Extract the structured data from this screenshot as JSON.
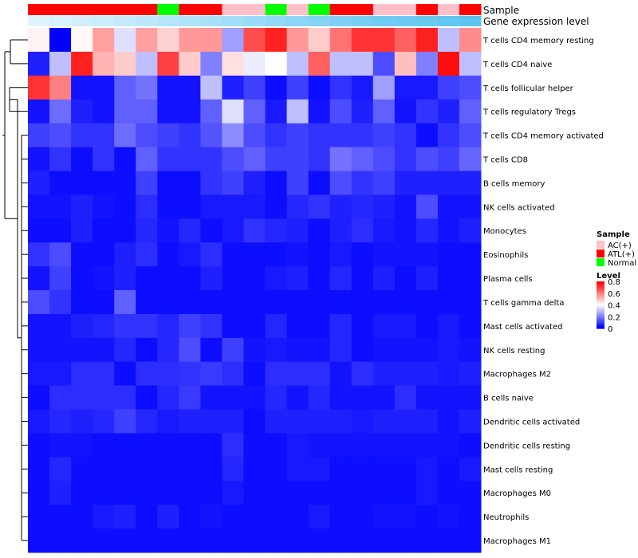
{
  "chart_data": {
    "type": "heatmap",
    "annotation_rows": [
      {
        "name": "Sample",
        "values": [
          "ATL(+)",
          "ATL(+)",
          "ATL(+)",
          "ATL(+)",
          "ATL(+)",
          "ATL(+)",
          "Normal",
          "ATL(+)",
          "ATL(+)",
          "AC(+)",
          "AC(+)",
          "Normal",
          "AC(+)",
          "Normal",
          "ATL(+)",
          "ATL(+)",
          "AC(+)",
          "AC(+)",
          "ATL(+)",
          "AC(+)",
          "ATL(+)"
        ]
      },
      {
        "name": "Gene expression level",
        "values": [
          0.05,
          0.1,
          0.15,
          0.2,
          0.25,
          0.3,
          0.35,
          0.4,
          0.45,
          0.5,
          0.55,
          0.6,
          0.65,
          0.7,
          0.75,
          0.8,
          0.85,
          0.88,
          0.91,
          0.95,
          1.0
        ]
      }
    ],
    "rows": [
      "T cells CD4 memory resting",
      "T cells CD4 naive",
      "T cells follicular helper",
      "T cells regulatory  Tregs",
      "T cells CD4 memory activated",
      "T cells CD8",
      "B cells memory",
      "NK cells activated",
      "Monocytes",
      "Eosinophils",
      "Plasma cells",
      "T cells gamma delta",
      "Mast cells activated",
      "NK cells resting",
      "Macrophages M2",
      "B cells naive",
      "Dendritic cells activated",
      "Dendritic cells resting",
      "Mast cells resting",
      "Macrophages M0",
      "Neutrophils",
      "Macrophages M1"
    ],
    "values": [
      [
        0.42,
        0.0,
        0.41,
        0.55,
        0.35,
        0.55,
        0.47,
        0.56,
        0.56,
        0.25,
        0.68,
        0.75,
        0.56,
        0.48,
        0.62,
        0.72,
        0.72,
        0.65,
        0.75,
        0.3,
        0.58
      ],
      [
        0.05,
        0.3,
        0.75,
        0.52,
        0.48,
        0.3,
        0.7,
        0.48,
        0.2,
        0.45,
        0.37,
        0.4,
        0.3,
        0.65,
        0.3,
        0.3,
        0.12,
        0.5,
        0.2,
        0.78,
        0.3
      ],
      [
        0.72,
        0.6,
        0.03,
        0.03,
        0.15,
        0.18,
        0.03,
        0.03,
        0.3,
        0.05,
        0.1,
        0.02,
        0.1,
        0.02,
        0.08,
        0.04,
        0.25,
        0.04,
        0.04,
        0.1,
        0.12
      ],
      [
        0.03,
        0.17,
        0.05,
        0.03,
        0.15,
        0.15,
        0.03,
        0.03,
        0.15,
        0.35,
        0.15,
        0.04,
        0.3,
        0.03,
        0.12,
        0.05,
        0.15,
        0.03,
        0.08,
        0.05,
        0.15
      ],
      [
        0.1,
        0.12,
        0.08,
        0.08,
        0.17,
        0.12,
        0.1,
        0.08,
        0.13,
        0.22,
        0.12,
        0.08,
        0.1,
        0.08,
        0.08,
        0.08,
        0.1,
        0.08,
        0.02,
        0.08,
        0.12
      ],
      [
        0.03,
        0.08,
        0.02,
        0.08,
        0.02,
        0.15,
        0.08,
        0.08,
        0.08,
        0.12,
        0.15,
        0.1,
        0.1,
        0.08,
        0.18,
        0.15,
        0.12,
        0.08,
        0.12,
        0.1,
        0.16
      ],
      [
        0.05,
        0.02,
        0.02,
        0.02,
        0.02,
        0.1,
        0.02,
        0.02,
        0.08,
        0.1,
        0.05,
        0.02,
        0.1,
        0.02,
        0.12,
        0.08,
        0.1,
        0.05,
        0.05,
        0.05,
        0.05
      ],
      [
        0.03,
        0.03,
        0.05,
        0.03,
        0.02,
        0.07,
        0.02,
        0.02,
        0.04,
        0.04,
        0.04,
        0.02,
        0.06,
        0.08,
        0.05,
        0.06,
        0.05,
        0.03,
        0.12,
        0.03,
        0.03
      ],
      [
        0.02,
        0.02,
        0.05,
        0.02,
        0.02,
        0.06,
        0.03,
        0.06,
        0.02,
        0.04,
        0.08,
        0.06,
        0.05,
        0.02,
        0.05,
        0.07,
        0.04,
        0.03,
        0.06,
        0.03,
        0.05
      ],
      [
        0.08,
        0.12,
        0.02,
        0.02,
        0.05,
        0.07,
        0.02,
        0.04,
        0.07,
        0.02,
        0.02,
        0.02,
        0.03,
        0.02,
        0.04,
        0.02,
        0.03,
        0.03,
        0.03,
        0.02,
        0.02
      ],
      [
        0.03,
        0.1,
        0.02,
        0.03,
        0.05,
        0.02,
        0.02,
        0.02,
        0.05,
        0.02,
        0.02,
        0.04,
        0.05,
        0.02,
        0.06,
        0.02,
        0.05,
        0.02,
        0.05,
        0.02,
        0.02
      ],
      [
        0.12,
        0.08,
        0.02,
        0.02,
        0.15,
        0.02,
        0.02,
        0.02,
        0.02,
        0.02,
        0.02,
        0.02,
        0.02,
        0.02,
        0.02,
        0.02,
        0.02,
        0.02,
        0.02,
        0.02,
        0.02
      ],
      [
        0.03,
        0.03,
        0.05,
        0.06,
        0.08,
        0.08,
        0.06,
        0.1,
        0.08,
        0.02,
        0.02,
        0.06,
        0.02,
        0.02,
        0.06,
        0.02,
        0.04,
        0.04,
        0.02,
        0.04,
        0.02
      ],
      [
        0.03,
        0.03,
        0.03,
        0.03,
        0.06,
        0.02,
        0.06,
        0.12,
        0.02,
        0.1,
        0.03,
        0.04,
        0.03,
        0.03,
        0.06,
        0.02,
        0.03,
        0.03,
        0.03,
        0.04,
        0.03
      ],
      [
        0.04,
        0.04,
        0.07,
        0.07,
        0.02,
        0.07,
        0.07,
        0.08,
        0.09,
        0.07,
        0.02,
        0.07,
        0.07,
        0.07,
        0.03,
        0.07,
        0.05,
        0.05,
        0.05,
        0.04,
        0.05
      ],
      [
        0.02,
        0.07,
        0.07,
        0.07,
        0.07,
        0.02,
        0.06,
        0.09,
        0.03,
        0.03,
        0.03,
        0.06,
        0.03,
        0.06,
        0.03,
        0.03,
        0.03,
        0.07,
        0.03,
        0.03,
        0.03
      ],
      [
        0.04,
        0.06,
        0.05,
        0.06,
        0.1,
        0.06,
        0.04,
        0.05,
        0.05,
        0.05,
        0.02,
        0.05,
        0.05,
        0.05,
        0.05,
        0.04,
        0.05,
        0.05,
        0.05,
        0.03,
        0.05
      ],
      [
        0.02,
        0.03,
        0.03,
        0.02,
        0.02,
        0.02,
        0.02,
        0.02,
        0.02,
        0.07,
        0.02,
        0.02,
        0.04,
        0.03,
        0.03,
        0.03,
        0.03,
        0.03,
        0.03,
        0.03,
        0.02
      ],
      [
        0.02,
        0.06,
        0.02,
        0.02,
        0.02,
        0.02,
        0.02,
        0.02,
        0.02,
        0.06,
        0.02,
        0.02,
        0.04,
        0.04,
        0.02,
        0.02,
        0.02,
        0.02,
        0.04,
        0.02,
        0.04
      ],
      [
        0.02,
        0.05,
        0.02,
        0.02,
        0.02,
        0.02,
        0.02,
        0.02,
        0.02,
        0.04,
        0.02,
        0.02,
        0.02,
        0.02,
        0.02,
        0.02,
        0.02,
        0.02,
        0.04,
        0.02,
        0.02
      ],
      [
        0.02,
        0.02,
        0.02,
        0.04,
        0.05,
        0.02,
        0.05,
        0.02,
        0.03,
        0.02,
        0.02,
        0.02,
        0.02,
        0.04,
        0.02,
        0.02,
        0.03,
        0.03,
        0.02,
        0.03,
        0.02
      ],
      [
        0.02,
        0.02,
        0.02,
        0.02,
        0.02,
        0.02,
        0.02,
        0.02,
        0.02,
        0.02,
        0.02,
        0.02,
        0.02,
        0.02,
        0.02,
        0.02,
        0.02,
        0.02,
        0.02,
        0.02,
        0.02
      ]
    ],
    "color_scale": {
      "min": 0,
      "mid": 0.4,
      "max": 0.8,
      "low": "#0000FF",
      "midc": "#FFFFFF",
      "high": "#FF0000"
    },
    "legend_sample": {
      "title": "Sample",
      "entries": [
        {
          "label": "AC(+)",
          "color": "#FFC0CB"
        },
        {
          "label": "ATL(+)",
          "color": "#FF0000"
        },
        {
          "label": "Normal",
          "color": "#00FF00"
        }
      ]
    },
    "legend_level": {
      "title": "Level",
      "ticks": [
        "0.8",
        "0.6",
        "0.4",
        "0.2",
        "0"
      ],
      "tick_values": [
        0.8,
        0.6,
        0.4,
        0.2,
        0
      ]
    },
    "annotation_labels": [
      "Sample",
      "Gene expression level"
    ],
    "expression_colors": {
      "low": "#E6F7FF",
      "high": "#5BC4F0"
    }
  }
}
